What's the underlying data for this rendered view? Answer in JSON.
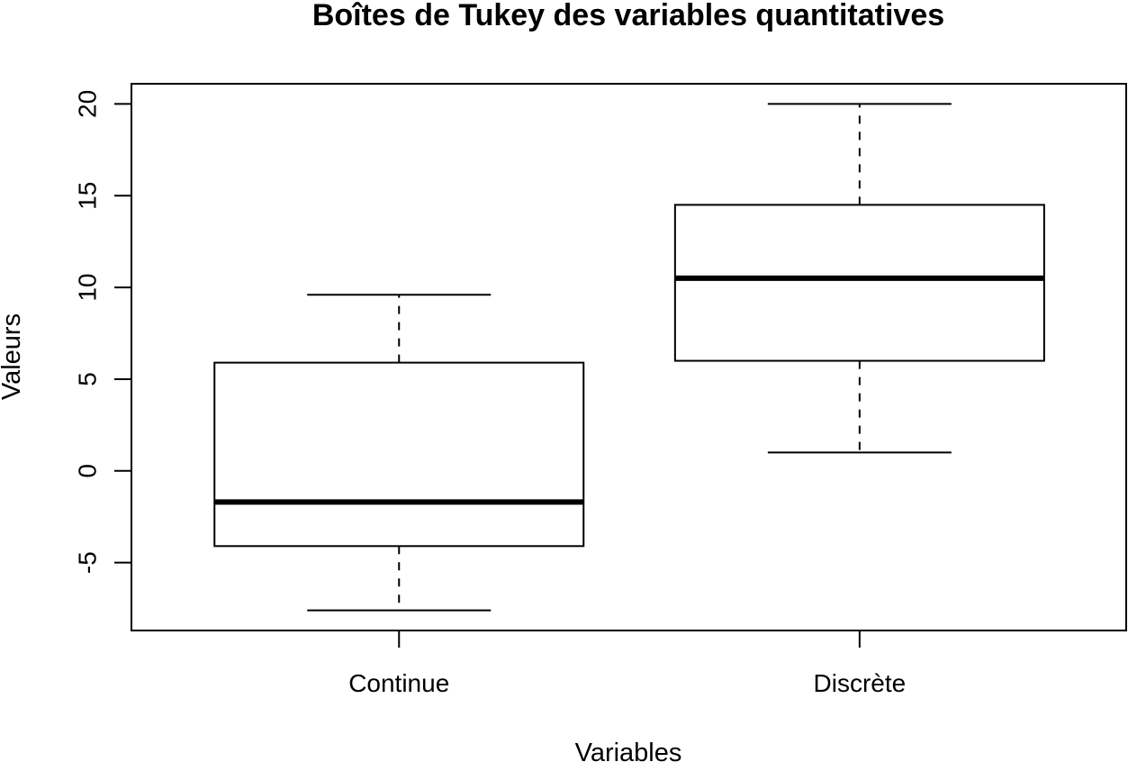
{
  "chart_data": {
    "type": "boxplot",
    "title": "Boîtes de Tukey des variables quantitatives",
    "xlabel": "Variables",
    "ylabel": "Valeurs",
    "categories": [
      "Continue",
      "Discrète"
    ],
    "boxes": [
      {
        "name": "Continue",
        "whisker_low": -7.6,
        "q1": -4.1,
        "median": -1.7,
        "q3": 5.9,
        "whisker_high": 9.6
      },
      {
        "name": "Discrète",
        "whisker_low": 1.0,
        "q1": 6.0,
        "median": 10.5,
        "q3": 14.5,
        "whisker_high": 20.0
      }
    ],
    "ylim": [
      -8.7,
      21.1
    ],
    "yticks": [
      -5,
      0,
      5,
      10,
      15,
      20
    ],
    "ytick_labels": [
      "-5",
      "0",
      "5",
      "10",
      "15",
      "20"
    ],
    "grid": false,
    "legend": false
  }
}
